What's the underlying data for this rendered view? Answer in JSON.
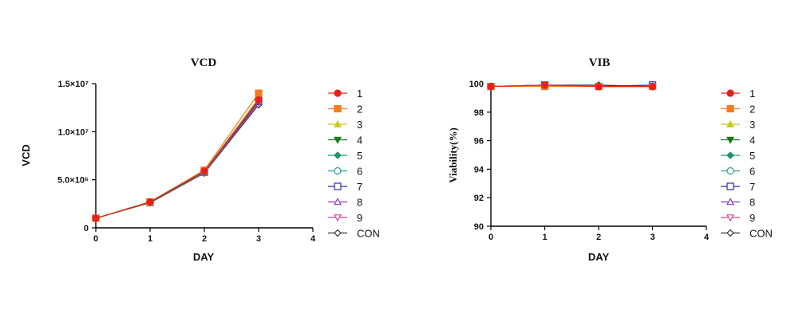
{
  "chart_data": [
    {
      "type": "line",
      "title": "VCD",
      "xlabel": "DAY",
      "ylabel": "VCD",
      "xlim": [
        0,
        4
      ],
      "ylim": [
        0,
        15000000
      ],
      "x_ticks": [
        "0",
        "1",
        "2",
        "3",
        "4"
      ],
      "y_ticks": [
        "0",
        "5.0×10⁶",
        "1.0×10⁷",
        "1.5×10⁷"
      ],
      "x": [
        0,
        1,
        2,
        3
      ],
      "series": [
        {
          "name": "1",
          "values": [
            1000000,
            2700000,
            5900000,
            13300000
          ]
        },
        {
          "name": "2",
          "values": [
            1000000,
            2700000,
            6000000,
            14000000
          ]
        },
        {
          "name": "3",
          "values": [
            1000000,
            2700000,
            5900000,
            13500000
          ]
        },
        {
          "name": "4",
          "values": [
            1000000,
            2650000,
            5850000,
            13400000
          ]
        },
        {
          "name": "5",
          "values": [
            1000000,
            2650000,
            5850000,
            13300000
          ]
        },
        {
          "name": "6",
          "values": [
            1000000,
            2650000,
            5800000,
            13300000
          ]
        },
        {
          "name": "7",
          "values": [
            1000000,
            2650000,
            5800000,
            13200000
          ]
        },
        {
          "name": "8",
          "values": [
            1000000,
            2650000,
            5800000,
            13100000
          ]
        },
        {
          "name": "9",
          "values": [
            1000000,
            2650000,
            5750000,
            13000000
          ]
        },
        {
          "name": "CON",
          "values": [
            1000000,
            2600000,
            5700000,
            12800000
          ]
        }
      ]
    },
    {
      "type": "line",
      "title": "VIB",
      "xlabel": "DAY",
      "ylabel": "Viability(%)",
      "xlim": [
        0,
        4
      ],
      "ylim": [
        90,
        100
      ],
      "x_ticks": [
        "0",
        "1",
        "2",
        "3",
        "4"
      ],
      "y_ticks": [
        "90",
        "92",
        "94",
        "96",
        "98",
        "100"
      ],
      "x": [
        0,
        1,
        2,
        3
      ],
      "series": [
        {
          "name": "1",
          "values": [
            99.8,
            99.9,
            99.8,
            99.8
          ]
        },
        {
          "name": "2",
          "values": [
            99.8,
            99.8,
            99.8,
            99.8
          ]
        },
        {
          "name": "3",
          "values": [
            99.8,
            99.9,
            99.8,
            99.8
          ]
        },
        {
          "name": "4",
          "values": [
            99.8,
            99.9,
            99.8,
            99.8
          ]
        },
        {
          "name": "5",
          "values": [
            99.8,
            99.9,
            99.8,
            99.8
          ]
        },
        {
          "name": "6",
          "values": [
            99.8,
            99.9,
            99.8,
            99.8
          ]
        },
        {
          "name": "7",
          "values": [
            99.8,
            99.9,
            99.8,
            99.9
          ]
        },
        {
          "name": "8",
          "values": [
            99.8,
            99.9,
            99.8,
            99.9
          ]
        },
        {
          "name": "9",
          "values": [
            99.8,
            99.9,
            99.8,
            99.8
          ]
        },
        {
          "name": "CON",
          "values": [
            99.8,
            99.9,
            99.9,
            99.8
          ]
        }
      ]
    }
  ],
  "series_styles": [
    {
      "color": "#e8201a",
      "marker": "circle",
      "filled": true
    },
    {
      "color": "#f47a1f",
      "marker": "square",
      "filled": true
    },
    {
      "color": "#c9c81e",
      "marker": "triangle-up",
      "filled": true
    },
    {
      "color": "#1a7a1a",
      "marker": "triangle-down",
      "filled": true
    },
    {
      "color": "#1a9a6a",
      "marker": "diamond",
      "filled": true
    },
    {
      "color": "#2aa0a0",
      "marker": "circle",
      "filled": false
    },
    {
      "color": "#2a2ab0",
      "marker": "square",
      "filled": false
    },
    {
      "color": "#8a3ac0",
      "marker": "triangle-up",
      "filled": false
    },
    {
      "color": "#d04a9a",
      "marker": "triangle-down",
      "filled": false
    },
    {
      "color": "#333333",
      "marker": "diamond",
      "filled": false
    }
  ]
}
